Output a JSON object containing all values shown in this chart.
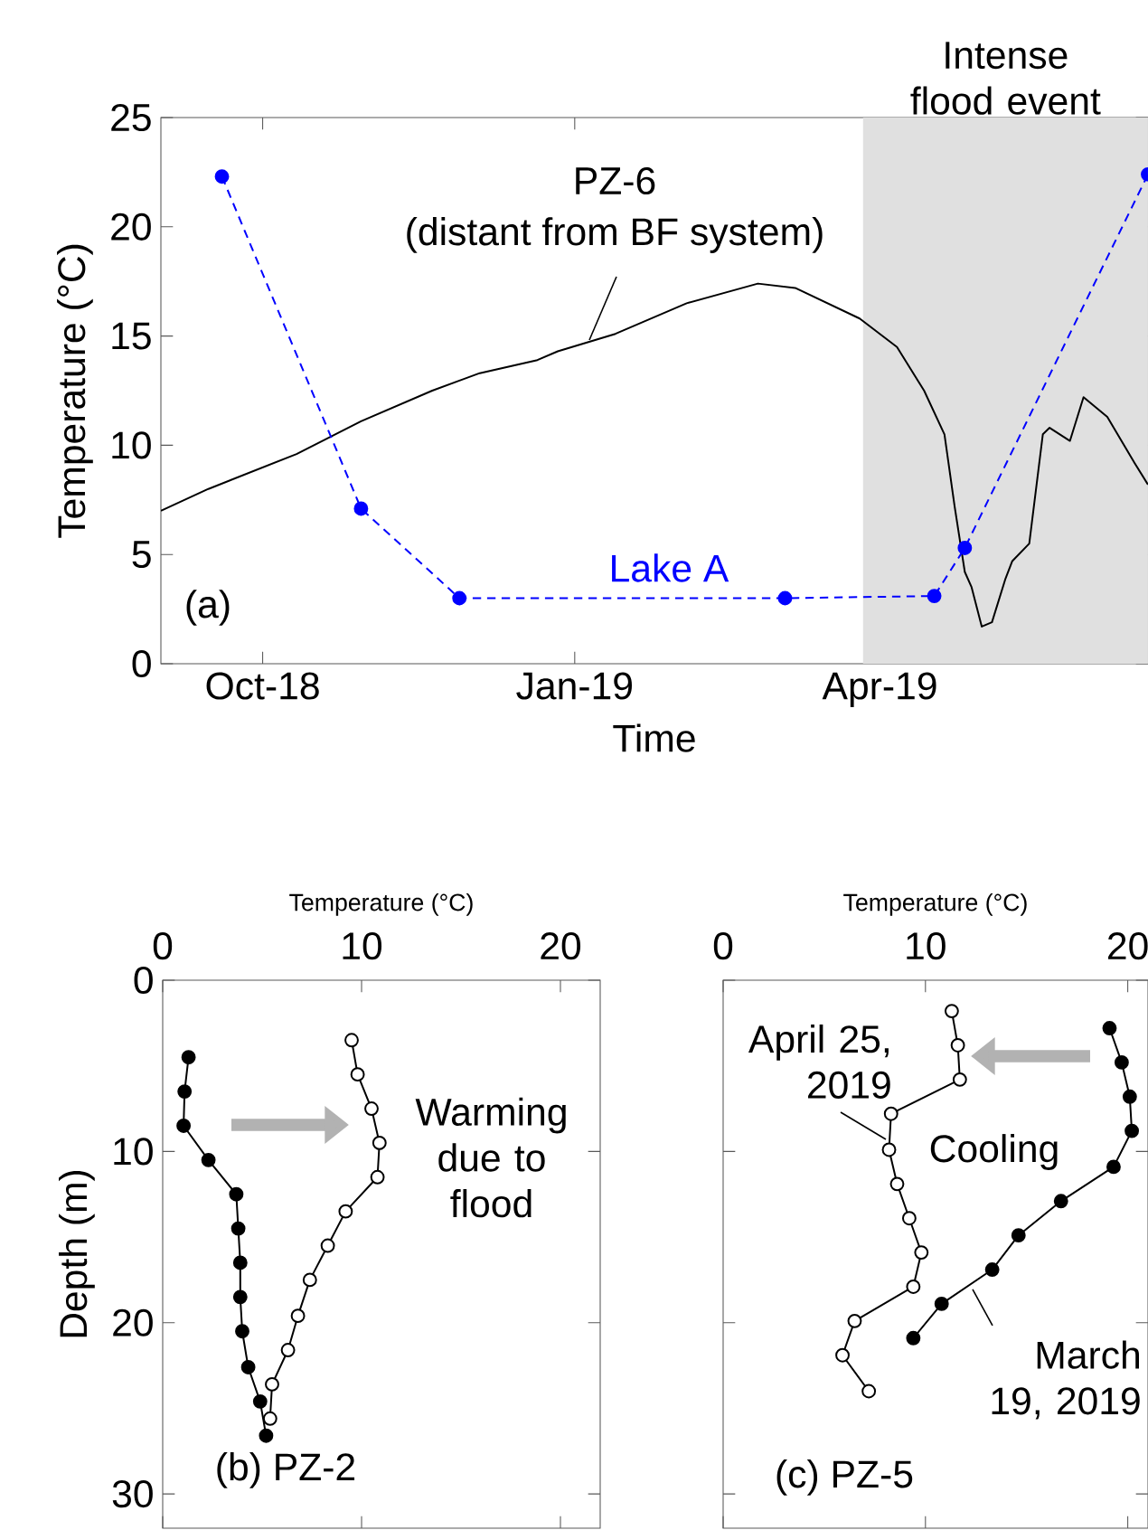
{
  "chart_data": [
    {
      "type": "line",
      "xlabel": "Time",
      "ylabel": "Temperature (°C)",
      "xlim": [
        "2018-09-01",
        "2019-06-19"
      ],
      "xticks": [
        {
          "value": "2018-10-01",
          "label": "Oct-18"
        },
        {
          "value": "2019-01-01",
          "label": "Jan-19"
        },
        {
          "value": "2019-04-01",
          "label": "Apr-19"
        }
      ],
      "ylim": [
        0,
        25
      ],
      "yticks": [
        0,
        5,
        10,
        15,
        20,
        25
      ],
      "bands": [
        {
          "axis": "x",
          "from": "2019-03-27",
          "to": "2019-06-19",
          "label": "Intense flood event",
          "color": "#e0e0e0"
        }
      ],
      "annotations": [
        "(a)",
        "(distant from BF system)"
      ],
      "series": [
        {
          "name": "PZ-6",
          "color": "#000000",
          "marker": "none",
          "line_style": "solid",
          "x": [
            "2018-09-01",
            "2018-09-15",
            "2018-10-11",
            "2018-10-30",
            "2018-11-20",
            "2018-12-04",
            "2018-12-21",
            "2018-12-27",
            "2019-01-13",
            "2019-02-03",
            "2019-02-24",
            "2019-03-07",
            "2019-03-26",
            "2019-04-06",
            "2019-04-14",
            "2019-04-20",
            "2019-04-23",
            "2019-04-26",
            "2019-04-28",
            "2019-05-01",
            "2019-05-04",
            "2019-05-08",
            "2019-05-10",
            "2019-05-15",
            "2019-05-19",
            "2019-05-21",
            "2019-05-27",
            "2019-05-31",
            "2019-06-07",
            "2019-06-15",
            "2019-06-19"
          ],
          "values": [
            7.0,
            8.0,
            9.6,
            11.1,
            12.5,
            13.3,
            13.9,
            14.3,
            15.1,
            16.5,
            17.4,
            17.2,
            15.8,
            14.5,
            12.5,
            10.5,
            7.2,
            4.2,
            3.5,
            1.7,
            1.9,
            3.9,
            4.7,
            5.5,
            10.5,
            10.8,
            10.2,
            12.2,
            11.3,
            9.2,
            8.2
          ]
        },
        {
          "name": "Lake A",
          "color": "#0000ff",
          "marker": "circle",
          "line_style": "dashed",
          "x": [
            "2018-09-19",
            "2018-10-30",
            "2018-11-28",
            "2019-03-04",
            "2019-04-17",
            "2019-04-26",
            "2019-06-19"
          ],
          "values": [
            22.3,
            7.1,
            3.0,
            3.0,
            3.1,
            5.3,
            22.4
          ]
        }
      ]
    },
    {
      "type": "line",
      "xlabel": "Temperature (°C)",
      "ylabel": "Depth (m)",
      "xlim": [
        0,
        22
      ],
      "xticks": [
        0,
        10,
        20
      ],
      "ylim": [
        32,
        0
      ],
      "yticks": [
        0,
        10,
        20,
        30
      ],
      "annotations": [
        "Warming due to flood",
        "(b) PZ-2"
      ],
      "series": [
        {
          "color": "#000000",
          "marker": "circle",
          "line_style": "solid",
          "x": [
            1.3,
            1.1,
            1.05,
            2.3,
            3.7,
            3.8,
            3.9,
            3.9,
            4.0,
            4.3,
            4.9,
            5.2
          ],
          "values": [
            4.5,
            6.5,
            8.5,
            10.5,
            12.5,
            14.5,
            16.5,
            18.5,
            20.5,
            22.6,
            24.6,
            26.6
          ]
        },
        {
          "color": "#000000",
          "marker": "circle",
          "line_style": "solid",
          "x": [
            9.5,
            9.8,
            10.5,
            10.9,
            10.8,
            9.2,
            8.3,
            7.4,
            6.8,
            6.3,
            5.5,
            5.4
          ],
          "values": [
            3.5,
            5.5,
            7.5,
            9.5,
            11.5,
            13.5,
            15.5,
            17.5,
            19.6,
            21.6,
            23.6,
            25.6
          ]
        }
      ]
    },
    {
      "type": "line",
      "xlabel": "Temperature (°C)",
      "xlim": [
        0,
        21
      ],
      "xticks": [
        0,
        10,
        20
      ],
      "ylim": [
        32,
        0
      ],
      "yticks": [
        0,
        10,
        20,
        30
      ],
      "tick_labels": "x",
      "annotations": [
        "Cooling",
        "(c) PZ-5"
      ],
      "series": [
        {
          "name": "March 19, 2019",
          "color": "#000000",
          "marker": "circle",
          "line_style": "solid",
          "x": [
            19.1,
            19.7,
            20.1,
            20.2,
            19.3,
            16.7,
            14.6,
            13.3,
            10.8,
            9.4
          ],
          "values": [
            2.8,
            4.8,
            6.8,
            8.8,
            10.9,
            12.9,
            14.9,
            16.9,
            18.9,
            20.9
          ]
        },
        {
          "name": "April 25, 2019",
          "color": "#000000",
          "marker": "circle",
          "line_style": "solid",
          "x": [
            11.3,
            11.6,
            11.7,
            8.3,
            8.2,
            8.6,
            9.2,
            9.8,
            9.4,
            6.5,
            5.9,
            7.2
          ],
          "values": [
            1.8,
            3.8,
            5.8,
            7.8,
            9.9,
            11.9,
            13.9,
            15.9,
            17.9,
            19.9,
            21.9,
            24.0
          ]
        }
      ]
    }
  ]
}
